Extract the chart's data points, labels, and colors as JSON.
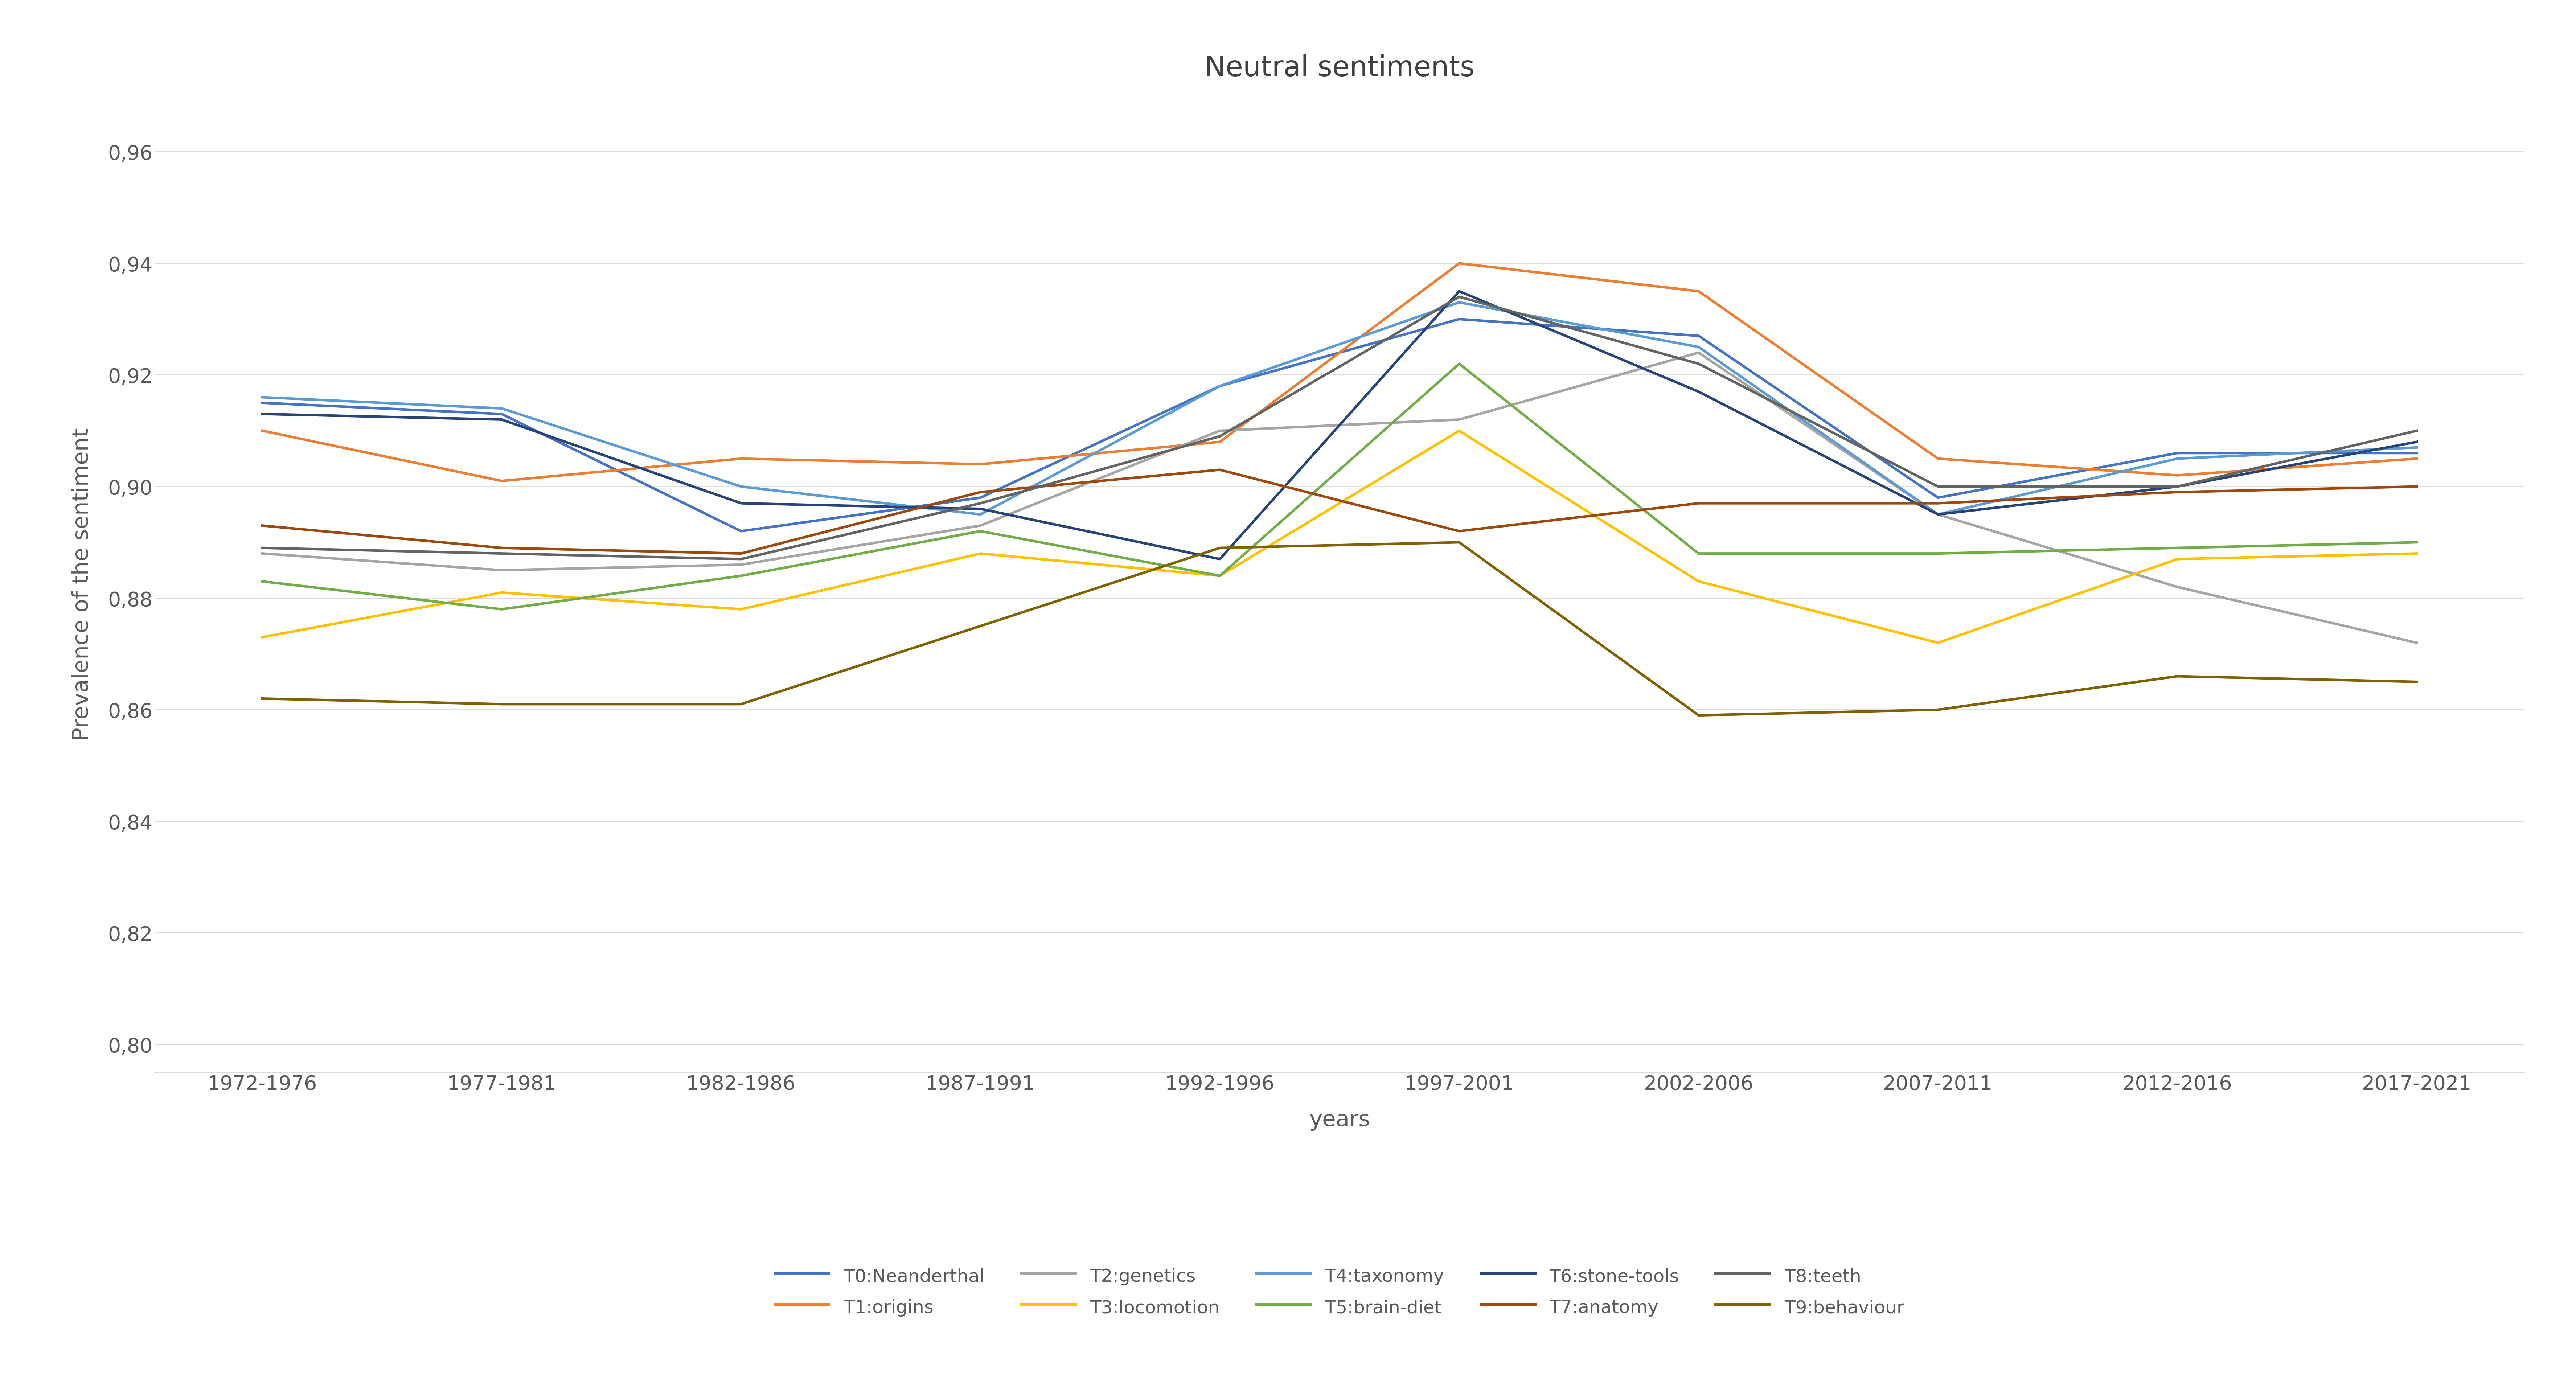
{
  "title": "Neutral sentiments",
  "xlabel": "years",
  "ylabel": "Prevalence of the sentiment",
  "x_labels": [
    "1972-1976",
    "1977-1981",
    "1982-1986",
    "1987-1991",
    "1992-1996",
    "1997-2001",
    "2002-2006",
    "2007-2011",
    "2012-2016",
    "2017-2021"
  ],
  "ylim": [
    0.795,
    0.97
  ],
  "yticks": [
    0.8,
    0.82,
    0.84,
    0.86,
    0.88,
    0.9,
    0.92,
    0.94,
    0.96
  ],
  "series": {
    "T0:Neanderthal": {
      "color": "#4472C4",
      "values": [
        0.915,
        0.913,
        0.892,
        0.898,
        0.918,
        0.93,
        0.927,
        0.898,
        0.906,
        0.906
      ]
    },
    "T1:origins": {
      "color": "#ED7D31",
      "values": [
        0.91,
        0.901,
        0.905,
        0.904,
        0.908,
        0.94,
        0.935,
        0.905,
        0.902,
        0.905
      ]
    },
    "T2:genetics": {
      "color": "#A5A5A5",
      "values": [
        0.888,
        0.885,
        0.886,
        0.893,
        0.91,
        0.912,
        0.924,
        0.895,
        0.882,
        0.872
      ]
    },
    "T3:locomotion": {
      "color": "#FFC000",
      "values": [
        0.873,
        0.881,
        0.878,
        0.888,
        0.884,
        0.91,
        0.883,
        0.872,
        0.887,
        0.888
      ]
    },
    "T4:taxonomy": {
      "color": "#5B9BD5",
      "values": [
        0.916,
        0.914,
        0.9,
        0.895,
        0.918,
        0.933,
        0.925,
        0.895,
        0.905,
        0.907
      ]
    },
    "T5:brain-diet": {
      "color": "#70AD47",
      "values": [
        0.883,
        0.878,
        0.884,
        0.892,
        0.884,
        0.922,
        0.888,
        0.888,
        0.889,
        0.89
      ]
    },
    "T6:stone-tools": {
      "color": "#264478",
      "values": [
        0.913,
        0.912,
        0.897,
        0.896,
        0.887,
        0.935,
        0.917,
        0.895,
        0.9,
        0.908
      ]
    },
    "T7:anatomy": {
      "color": "#9E480E",
      "values": [
        0.893,
        0.889,
        0.888,
        0.899,
        0.903,
        0.892,
        0.897,
        0.897,
        0.899,
        0.9
      ]
    },
    "T8:teeth": {
      "color": "#636363",
      "values": [
        0.889,
        0.888,
        0.887,
        0.897,
        0.909,
        0.934,
        0.922,
        0.9,
        0.9,
        0.91
      ]
    },
    "T9:behaviour": {
      "color": "#806000",
      "values": [
        0.862,
        0.861,
        0.861,
        0.875,
        0.889,
        0.89,
        0.859,
        0.86,
        0.866,
        0.865
      ]
    }
  },
  "background_color": "#FFFFFF",
  "grid_color": "#D9D9D9",
  "tick_label_color": "#595959",
  "axis_label_color": "#595959",
  "title_color": "#404040",
  "title_fontsize": 56,
  "axis_label_fontsize": 44,
  "tick_fontsize": 40,
  "legend_fontsize": 36,
  "line_width": 5.0
}
